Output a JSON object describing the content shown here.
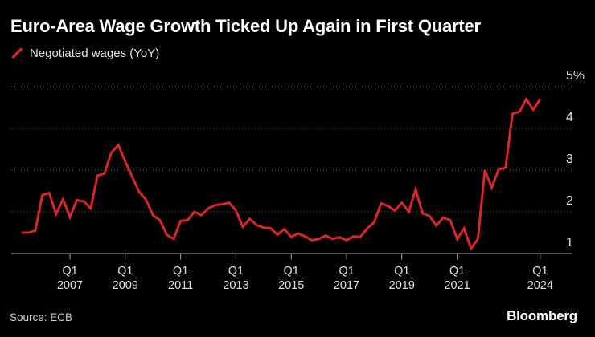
{
  "header": {
    "title": "Euro-Area Wage Growth Ticked Up Again in First Quarter",
    "legend_label": "Negotiated wages (YoY)"
  },
  "footer": {
    "source": "Source: ECB",
    "brand": "Bloomberg"
  },
  "colors": {
    "background": "#000000",
    "line": "#d92726",
    "grid": "#737373",
    "axis": "#a9a9a9",
    "tick_label": "#e0e0e0",
    "title": "#ffffff",
    "legend_text": "#e4e4e4",
    "source_text": "#cfcfcf",
    "brand_text": "#ffffff"
  },
  "chart_data": {
    "type": "line",
    "title": "Euro-Area Wage Growth Ticked Up Again in First Quarter",
    "series_name": "Negotiated wages (YoY)",
    "unit": "%",
    "frequency": "quarterly",
    "grid": "horizontal-dotted",
    "legend_position": "top-left",
    "ylim": [
      1,
      5
    ],
    "x": [
      "2005Q2",
      "2005Q3",
      "2005Q4",
      "2006Q1",
      "2006Q2",
      "2006Q3",
      "2006Q4",
      "2007Q1",
      "2007Q2",
      "2007Q3",
      "2007Q4",
      "2008Q1",
      "2008Q2",
      "2008Q3",
      "2008Q4",
      "2009Q1",
      "2009Q2",
      "2009Q3",
      "2009Q4",
      "2010Q1",
      "2010Q2",
      "2010Q3",
      "2010Q4",
      "2011Q1",
      "2011Q2",
      "2011Q3",
      "2011Q4",
      "2012Q1",
      "2012Q2",
      "2012Q3",
      "2012Q4",
      "2013Q1",
      "2013Q2",
      "2013Q3",
      "2013Q4",
      "2014Q1",
      "2014Q2",
      "2014Q3",
      "2014Q4",
      "2015Q1",
      "2015Q2",
      "2015Q3",
      "2015Q4",
      "2016Q1",
      "2016Q2",
      "2016Q3",
      "2016Q4",
      "2017Q1",
      "2017Q2",
      "2017Q3",
      "2017Q4",
      "2018Q1",
      "2018Q2",
      "2018Q3",
      "2018Q4",
      "2019Q1",
      "2019Q2",
      "2019Q3",
      "2019Q4",
      "2020Q1",
      "2020Q2",
      "2020Q3",
      "2020Q4",
      "2021Q1",
      "2021Q2",
      "2021Q3",
      "2021Q4",
      "2022Q1",
      "2022Q2",
      "2022Q3",
      "2022Q4",
      "2023Q1",
      "2023Q2",
      "2023Q3",
      "2023Q4",
      "2024Q1"
    ],
    "values": [
      1.5,
      1.5,
      1.55,
      2.4,
      2.45,
      1.95,
      2.3,
      1.87,
      2.28,
      2.25,
      2.08,
      2.87,
      2.92,
      3.42,
      3.6,
      3.2,
      2.84,
      2.48,
      2.29,
      1.92,
      1.8,
      1.45,
      1.35,
      1.78,
      1.8,
      2.0,
      1.92,
      2.08,
      2.16,
      2.18,
      2.22,
      2.03,
      1.64,
      1.83,
      1.68,
      1.62,
      1.61,
      1.45,
      1.58,
      1.4,
      1.48,
      1.41,
      1.32,
      1.35,
      1.43,
      1.35,
      1.39,
      1.32,
      1.41,
      1.4,
      1.6,
      1.75,
      2.2,
      2.14,
      2.03,
      2.22,
      2.0,
      2.54,
      1.96,
      1.9,
      1.67,
      1.86,
      1.8,
      1.35,
      1.6,
      1.12,
      1.35,
      3.0,
      2.58,
      3.02,
      3.06,
      4.35,
      4.4,
      4.7,
      4.45,
      4.7
    ],
    "yticks": [
      {
        "value": 5,
        "label": "5%"
      },
      {
        "value": 4,
        "label": "4"
      },
      {
        "value": 3,
        "label": "3"
      },
      {
        "value": 2,
        "label": "2"
      },
      {
        "value": 1,
        "label": "1"
      }
    ],
    "xticks": [
      {
        "index": 7,
        "quarter": "Q1",
        "year": "2007"
      },
      {
        "index": 15,
        "quarter": "Q1",
        "year": "2009"
      },
      {
        "index": 23,
        "quarter": "Q1",
        "year": "2011"
      },
      {
        "index": 31,
        "quarter": "Q1",
        "year": "2013"
      },
      {
        "index": 39,
        "quarter": "Q1",
        "year": "2015"
      },
      {
        "index": 47,
        "quarter": "Q1",
        "year": "2017"
      },
      {
        "index": 55,
        "quarter": "Q1",
        "year": "2019"
      },
      {
        "index": 63,
        "quarter": "Q1",
        "year": "2021"
      },
      {
        "index": 75,
        "quarter": "Q1",
        "year": "2024"
      }
    ]
  }
}
